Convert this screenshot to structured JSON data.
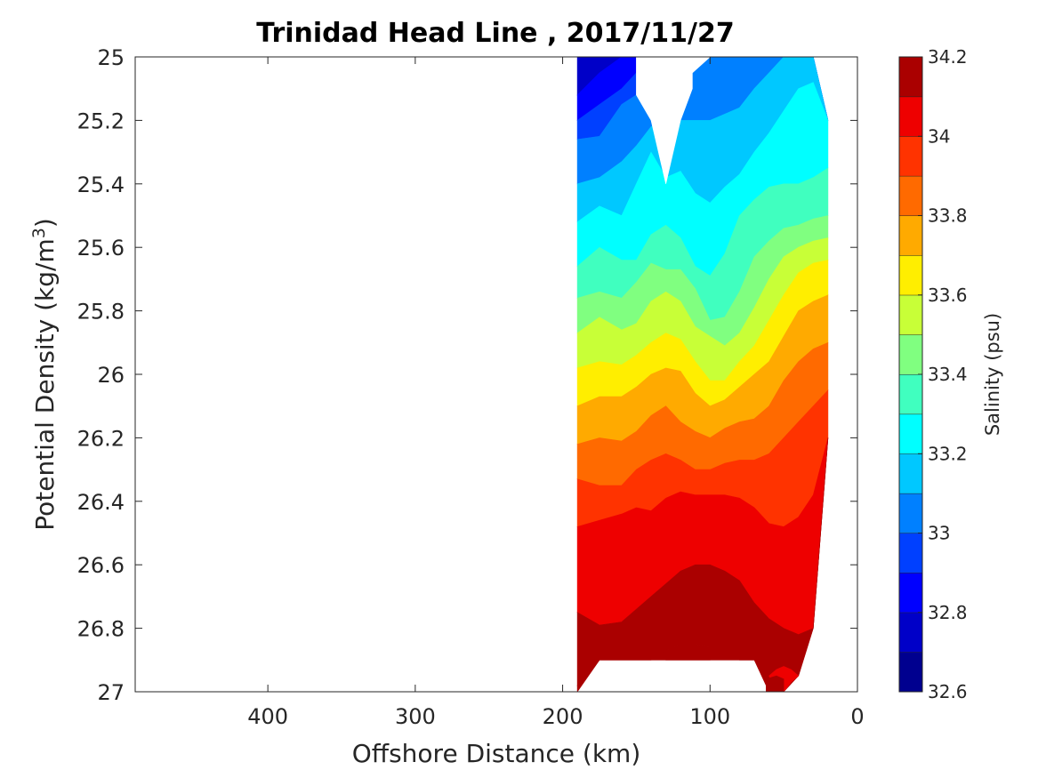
{
  "chart_data": {
    "type": "heatmap",
    "title": "Trinidad Head Line , 2017/11/27",
    "xlabel": "Offshore Distance (km)",
    "ylabel": {
      "main": "Potential Density (kg/m",
      "sup": "3",
      "end": ")"
    },
    "xlim": [
      490,
      0
    ],
    "ylim": [
      25,
      27
    ],
    "y_reversed": true,
    "x_ticks": [
      "400",
      "300",
      "200",
      "100",
      "0"
    ],
    "x_tick_values": [
      400,
      300,
      200,
      100,
      0
    ],
    "y_ticks": [
      "25",
      "25.2",
      "25.4",
      "25.6",
      "25.8",
      "26",
      "26.2",
      "26.4",
      "26.6",
      "26.8",
      "27"
    ],
    "y_tick_values": [
      25,
      25.2,
      25.4,
      25.6,
      25.8,
      26,
      26.2,
      26.4,
      26.6,
      26.8,
      27
    ],
    "colorbar": {
      "label": "Salinity (psu)",
      "range": [
        32.6,
        34.2
      ],
      "tick_labels": [
        "34.2",
        "34",
        "33.8",
        "33.6",
        "33.4",
        "33.2",
        "33",
        "32.8",
        "32.6"
      ],
      "tick_values": [
        34.2,
        34.0,
        33.8,
        33.6,
        33.4,
        33.2,
        33.0,
        32.8,
        32.6
      ],
      "levels": [
        {
          "lo": 32.6,
          "hi": 32.7,
          "color": "#00008f"
        },
        {
          "lo": 32.7,
          "hi": 32.8,
          "color": "#0000c8"
        },
        {
          "lo": 32.8,
          "hi": 32.9,
          "color": "#0000ff"
        },
        {
          "lo": 32.9,
          "hi": 33.0,
          "color": "#0040ff"
        },
        {
          "lo": 33.0,
          "hi": 33.1,
          "color": "#0080ff"
        },
        {
          "lo": 33.1,
          "hi": 33.2,
          "color": "#00c8ff"
        },
        {
          "lo": 33.2,
          "hi": 33.3,
          "color": "#00ffff"
        },
        {
          "lo": 33.3,
          "hi": 33.4,
          "color": "#40ffbf"
        },
        {
          "lo": 33.4,
          "hi": 33.5,
          "color": "#80ff80"
        },
        {
          "lo": 33.5,
          "hi": 33.6,
          "color": "#c8ff37"
        },
        {
          "lo": 33.6,
          "hi": 33.7,
          "color": "#ffee00"
        },
        {
          "lo": 33.7,
          "hi": 33.8,
          "color": "#ffaa00"
        },
        {
          "lo": 33.8,
          "hi": 33.9,
          "color": "#ff6a00"
        },
        {
          "lo": 33.9,
          "hi": 34.0,
          "color": "#ff3300"
        },
        {
          "lo": 34.0,
          "hi": 34.1,
          "color": "#ee0000"
        },
        {
          "lo": 34.1,
          "hi": 34.2,
          "color": "#aa0000"
        }
      ]
    },
    "sections": [
      {
        "x": [
          190,
          175,
          160,
          150,
          140,
          130,
          120,
          110,
          100,
          90,
          80,
          70,
          60,
          50,
          40,
          30,
          20
        ],
        "top": [
          25,
          25,
          25,
          25,
          25,
          25,
          25,
          25,
          25,
          25,
          25,
          25,
          25,
          25,
          25,
          25,
          25.2
        ],
        "bottom": [
          27,
          26.9,
          26.9,
          26.9,
          26.9,
          26.9,
          26.9,
          26.9,
          26.9,
          26.9,
          26.9,
          26.9,
          27,
          27,
          26.95,
          26.8,
          26.2
        ],
        "boundaries": [
          {
            "value": 32.7,
            "y": [
              25.12,
              25.05,
              25.0,
              25.0,
              25.0,
              25.0,
              25.0,
              25.0,
              25.0,
              25.0,
              25.0,
              25.0,
              25.0,
              25.0,
              25.0,
              25.0,
              25.0
            ]
          },
          {
            "value": 32.8,
            "y": [
              25.2,
              25.15,
              25.1,
              25.05,
              25.0,
              25.0,
              25.0,
              25.0,
              25.0,
              25.0,
              25.0,
              25.0,
              25.0,
              25.0,
              25.0,
              25.0,
              25.0
            ]
          },
          {
            "value": 32.9,
            "y": [
              25.26,
              25.25,
              25.15,
              25.12,
              25.1,
              25.08,
              25.05,
              25.0,
              25.0,
              25.0,
              25.0,
              25.0,
              25.0,
              25.0,
              25.0,
              25.0,
              25.0
            ]
          },
          {
            "value": 33.0,
            "y": [
              25.4,
              25.38,
              25.33,
              25.28,
              25.22,
              25.2,
              25.2,
              25.2,
              25.2,
              25.18,
              25.16,
              25.1,
              25.05,
              25.0,
              25.0,
              25.0,
              25.0
            ]
          },
          {
            "value": 33.1,
            "y": [
              25.52,
              25.47,
              25.5,
              25.4,
              25.3,
              25.38,
              25.36,
              25.43,
              25.46,
              25.41,
              25.37,
              25.3,
              25.24,
              25.17,
              25.1,
              25.08,
              25.02
            ]
          },
          {
            "value": 33.2,
            "y": [
              25.66,
              25.6,
              25.64,
              25.64,
              25.56,
              25.53,
              25.57,
              25.66,
              25.69,
              25.62,
              25.5,
              25.45,
              25.41,
              25.4,
              25.4,
              25.38,
              25.35
            ]
          },
          {
            "value": 33.3,
            "y": [
              25.76,
              25.74,
              25.76,
              25.71,
              25.65,
              25.67,
              25.67,
              25.73,
              25.83,
              25.82,
              25.74,
              25.63,
              25.58,
              25.54,
              25.53,
              25.51,
              25.5
            ]
          },
          {
            "value": 33.4,
            "y": [
              25.87,
              25.82,
              25.86,
              25.84,
              25.77,
              25.74,
              25.77,
              25.85,
              25.88,
              25.91,
              25.87,
              25.79,
              25.7,
              25.63,
              25.6,
              25.58,
              25.57
            ]
          },
          {
            "value": 33.5,
            "y": [
              25.98,
              25.96,
              25.97,
              25.94,
              25.9,
              25.87,
              25.89,
              25.96,
              26.02,
              26.02,
              25.96,
              25.91,
              25.83,
              25.75,
              25.68,
              25.65,
              25.64
            ]
          },
          {
            "value": 33.6,
            "y": [
              26.1,
              26.07,
              26.07,
              26.04,
              26.0,
              25.98,
              25.99,
              26.06,
              26.1,
              26.08,
              26.04,
              26.0,
              25.96,
              25.88,
              25.8,
              25.77,
              25.75
            ]
          },
          {
            "value": 33.7,
            "y": [
              26.22,
              26.2,
              26.21,
              26.18,
              26.13,
              26.1,
              26.15,
              26.18,
              26.2,
              26.17,
              26.15,
              26.14,
              26.1,
              26.02,
              25.96,
              25.92,
              25.9
            ]
          },
          {
            "value": 33.8,
            "y": [
              26.33,
              26.35,
              26.35,
              26.3,
              26.27,
              26.25,
              26.27,
              26.3,
              26.3,
              26.28,
              26.27,
              26.27,
              26.25,
              26.2,
              26.15,
              26.1,
              26.05
            ]
          },
          {
            "value": 33.9,
            "y": [
              26.48,
              26.46,
              26.44,
              26.42,
              26.43,
              26.39,
              26.37,
              26.38,
              26.38,
              26.38,
              26.39,
              26.42,
              26.47,
              26.48,
              26.45,
              26.38,
              26.25
            ]
          },
          {
            "value": 34.0,
            "y": [
              26.75,
              26.79,
              26.78,
              26.74,
              26.7,
              26.66,
              26.62,
              26.6,
              26.6,
              26.62,
              26.65,
              26.72,
              26.77,
              26.8,
              26.82,
              26.82,
              26.8
            ]
          },
          {
            "value": 34.1,
            "y": [
              26.98,
              26.95,
              26.92,
              26.91,
              26.9,
              26.87,
              26.85,
              26.85,
              26.86,
              26.89,
              26.92,
              26.94,
              26.97,
              26.95,
              26.97,
              27.0,
              27.0
            ]
          }
        ]
      }
    ],
    "gaps": [
      {
        "level_index": 4,
        "x": [
          150,
          140,
          130,
          120,
          112
        ],
        "top": [
          25,
          25,
          25,
          25,
          25
        ],
        "bottom": [
          25.12,
          25.2,
          25.4,
          25.2,
          25.1
        ]
      },
      {
        "level_index": 4,
        "x": [
          112,
          100,
          90,
          80
        ],
        "top": [
          25,
          25,
          25,
          25
        ],
        "bottom": [
          25.05,
          25.0,
          25.0,
          25.0
        ]
      },
      {
        "level_index": 14,
        "x": [
          60,
          55,
          50,
          45,
          40
        ],
        "top": [
          26.95,
          26.93,
          26.92,
          26.93,
          26.95
        ],
        "bottom": [
          26.95,
          27,
          27,
          26.97,
          26.95
        ]
      },
      {
        "level_index": 15,
        "x": [
          130,
          120,
          110,
          100
        ],
        "top": [
          26.88,
          26.85,
          26.85,
          26.88
        ],
        "bottom": [
          26.9,
          26.9,
          26.9,
          26.9
        ]
      },
      {
        "level_index": 15,
        "x": [
          62,
          55,
          50
        ],
        "top": [
          26.96,
          26.95,
          26.96
        ],
        "bottom": [
          27,
          27,
          27
        ]
      }
    ]
  }
}
